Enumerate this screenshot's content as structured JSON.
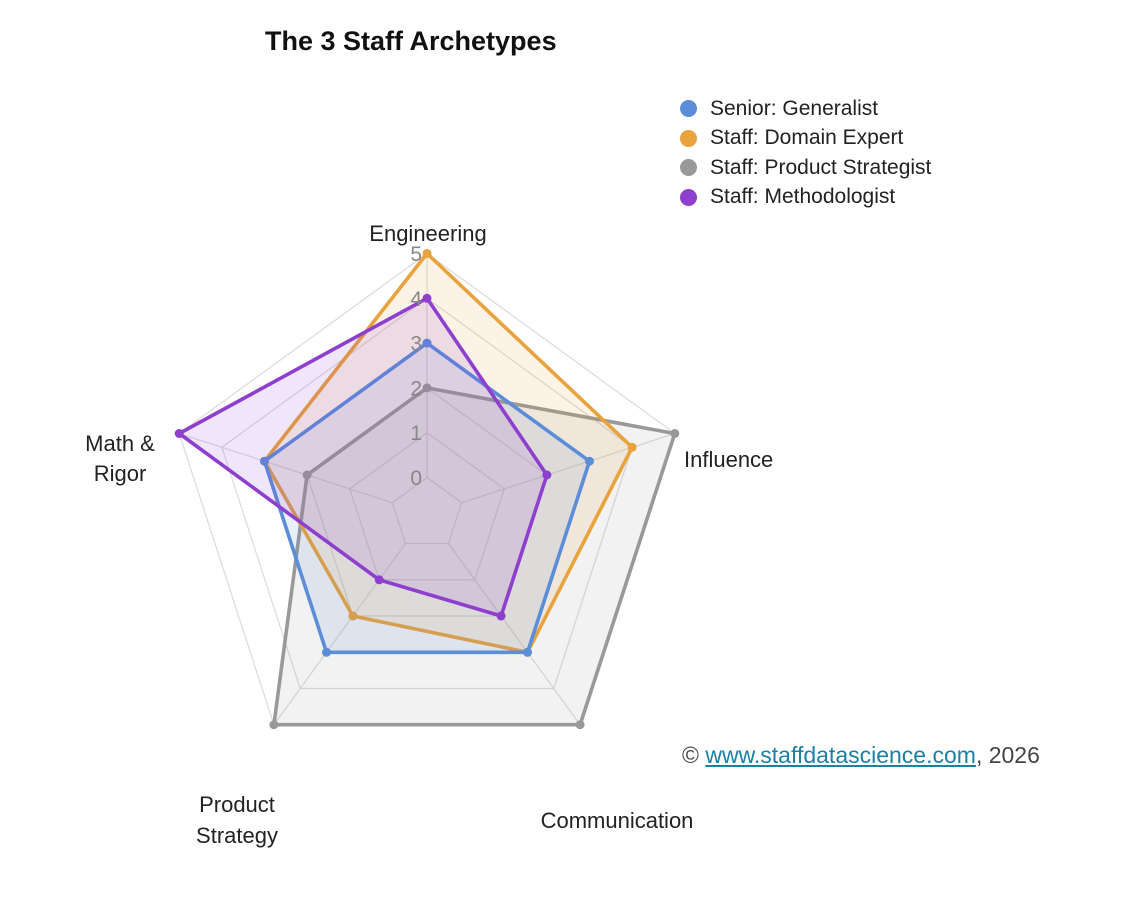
{
  "chart_data": {
    "type": "radar",
    "title": "The 3 Staff Archetypes",
    "axes": [
      "Engineering",
      "Influence",
      "Communication",
      "Product Strategy",
      "Math & Rigor"
    ],
    "axis_label_lines": [
      [
        "Engineering"
      ],
      [
        "Influence"
      ],
      [
        "Communication"
      ],
      [
        "Product",
        "Strategy"
      ],
      [
        "Math &",
        "Rigor"
      ]
    ],
    "ticks": [
      0,
      1,
      2,
      3,
      4,
      5
    ],
    "range": [
      0,
      5
    ],
    "grid": true,
    "legend_position": "top-right",
    "series": [
      {
        "name": "Senior: Generalist",
        "color": "#5b8dd9",
        "values": [
          3,
          3,
          3,
          3,
          3
        ]
      },
      {
        "name": "Staff: Domain Expert",
        "color": "#e8a33c",
        "values": [
          5,
          4,
          3,
          2,
          3
        ]
      },
      {
        "name": "Staff: Product Strategist",
        "color": "#999999",
        "values": [
          2,
          5,
          5,
          5,
          2
        ]
      },
      {
        "name": "Staff: Methodologist",
        "color": "#8e3fce",
        "values": [
          4,
          2,
          2,
          1,
          5
        ]
      }
    ]
  },
  "footer": {
    "copyright_symbol": "©",
    "link_text": "www.staffdatascience.com",
    "year_text": ", 2026"
  }
}
